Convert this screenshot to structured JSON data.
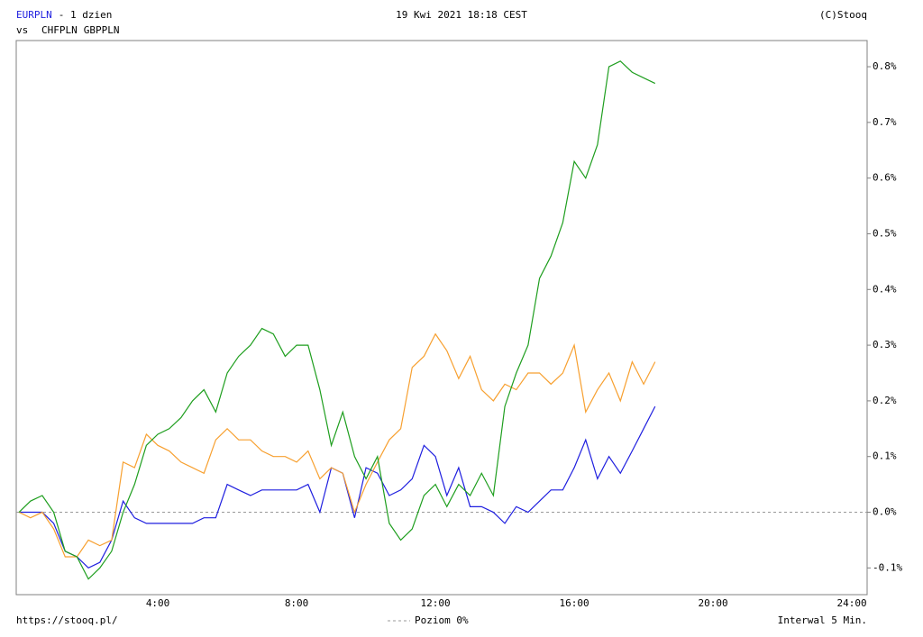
{
  "chart_data": {
    "type": "line",
    "title": "- 1 dzien",
    "vs_label": "vs",
    "date": "19 Kwi 2021 18:18 CEST",
    "source": "(C)Stooq",
    "url": "https://stooq.pl/",
    "interval": "Interwal 5 Min.",
    "reference_line": {
      "value": 0,
      "label": "Poziom 0%",
      "color": "#999999"
    },
    "x": [
      0,
      0.33,
      0.67,
      1,
      1.33,
      1.67,
      2,
      2.33,
      2.67,
      3,
      3.33,
      3.67,
      4,
      4.33,
      4.67,
      5,
      5.33,
      5.67,
      6,
      6.33,
      6.67,
      7,
      7.33,
      7.67,
      8,
      8.33,
      8.67,
      9,
      9.33,
      9.67,
      10,
      10.33,
      10.67,
      11,
      11.33,
      11.67,
      12,
      12.33,
      12.67,
      13,
      13.33,
      13.67,
      14,
      14.33,
      14.67,
      15,
      15.33,
      15.67,
      16,
      16.33,
      16.67,
      17,
      17.33,
      17.67,
      18,
      18.33
    ],
    "series": [
      {
        "name": "EURPLN",
        "color": "#1f1fdf",
        "values": [
          0,
          0,
          0,
          -0.02,
          -0.07,
          -0.08,
          -0.1,
          -0.09,
          -0.05,
          0.02,
          -0.01,
          -0.02,
          -0.02,
          -0.02,
          -0.02,
          -0.02,
          -0.01,
          -0.01,
          0.05,
          0.04,
          0.03,
          0.04,
          0.04,
          0.04,
          0.04,
          0.05,
          0,
          0.08,
          0.07,
          -0.01,
          0.08,
          0.07,
          0.03,
          0.04,
          0.06,
          0.12,
          0.1,
          0.03,
          0.08,
          0.01,
          0.01,
          0,
          -0.02,
          0.01,
          0,
          0.02,
          0.04,
          0.04,
          0.08,
          0.13,
          0.06,
          0.1,
          0.07,
          0.11,
          0.15,
          0.19
        ]
      },
      {
        "name": "CHFPLN",
        "color": "#f7a030",
        "values": [
          0,
          -0.01,
          0,
          -0.03,
          -0.08,
          -0.08,
          -0.05,
          -0.06,
          -0.05,
          0.09,
          0.08,
          0.14,
          0.12,
          0.11,
          0.09,
          0.08,
          0.07,
          0.13,
          0.15,
          0.13,
          0.13,
          0.11,
          0.1,
          0.1,
          0.09,
          0.11,
          0.06,
          0.08,
          0.07,
          0,
          0.05,
          0.09,
          0.13,
          0.15,
          0.26,
          0.28,
          0.32,
          0.29,
          0.24,
          0.28,
          0.22,
          0.2,
          0.23,
          0.22,
          0.25,
          0.25,
          0.23,
          0.25,
          0.3,
          0.18,
          0.22,
          0.25,
          0.2,
          0.27,
          0.23,
          0.27
        ]
      },
      {
        "name": "GBPPLN",
        "color": "#1e9e1e",
        "values": [
          0,
          0.02,
          0.03,
          0,
          -0.07,
          -0.08,
          -0.12,
          -0.1,
          -0.07,
          0,
          0.05,
          0.12,
          0.14,
          0.15,
          0.17,
          0.2,
          0.22,
          0.18,
          0.25,
          0.28,
          0.3,
          0.33,
          0.32,
          0.28,
          0.3,
          0.3,
          0.22,
          0.12,
          0.18,
          0.1,
          0.06,
          0.1,
          -0.02,
          -0.05,
          -0.03,
          0.03,
          0.05,
          0.01,
          0.05,
          0.03,
          0.07,
          0.03,
          0.19,
          0.25,
          0.3,
          0.42,
          0.46,
          0.52,
          0.63,
          0.6,
          0.66,
          0.8,
          0.81,
          0.79,
          0.78,
          0.77
        ]
      }
    ],
    "xlim": [
      -0.08,
      24.44
    ],
    "xticks": [
      {
        "value": 4,
        "label": "4:00"
      },
      {
        "value": 8,
        "label": "8:00"
      },
      {
        "value": 12,
        "label": "12:00"
      },
      {
        "value": 16,
        "label": "16:00"
      },
      {
        "value": 20,
        "label": "20:00"
      },
      {
        "value": 24,
        "label": "24:00"
      }
    ],
    "ylim": [
      -0.148,
      0.847
    ],
    "yticks": [
      {
        "value": -0.1,
        "label": "-0.1%"
      },
      {
        "value": 0,
        "label": "0.0%"
      },
      {
        "value": 0.1,
        "label": "0.1%"
      },
      {
        "value": 0.2,
        "label": "0.2%"
      },
      {
        "value": 0.3,
        "label": "0.3%"
      },
      {
        "value": 0.4,
        "label": "0.4%"
      },
      {
        "value": 0.5,
        "label": "0.5%"
      },
      {
        "value": 0.6,
        "label": "0.6%"
      },
      {
        "value": 0.7,
        "label": "0.7%"
      },
      {
        "value": 0.8,
        "label": "0.8%"
      }
    ],
    "grid": true
  }
}
